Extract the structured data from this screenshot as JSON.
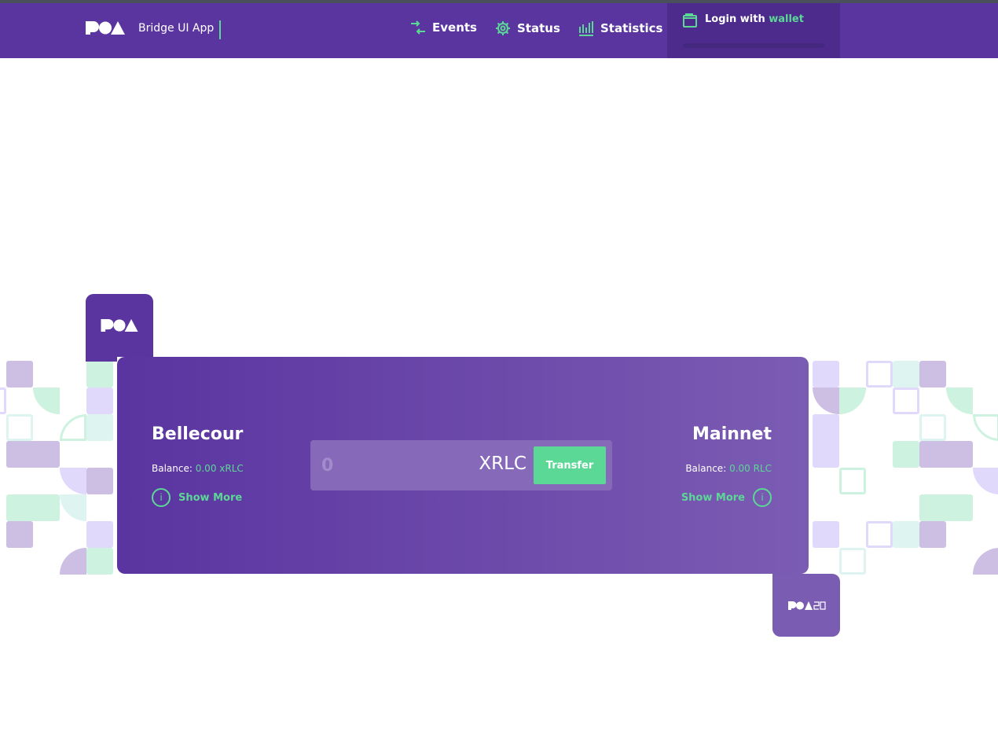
{
  "header": {
    "app_name": "Bridge UI App",
    "nav": [
      {
        "label": "Events",
        "icon": "arrows-exchange-icon"
      },
      {
        "label": "Status",
        "icon": "gear-icon"
      },
      {
        "label": "Statistics",
        "icon": "bar-chart-icon"
      }
    ],
    "login": {
      "prefix": "Login with",
      "highlight": "wallet",
      "icon": "wallet-icon"
    }
  },
  "bridge": {
    "home": {
      "name": "Bellecour",
      "balance_label": "Balance:",
      "balance": "0.00 xRLC",
      "show_more": "Show More"
    },
    "foreign": {
      "name": "Mainnet",
      "balance_label": "Balance:",
      "balance": "0.00 RLC",
      "show_more": "Show More"
    },
    "amount_placeholder": "0",
    "token": "XRLC",
    "transfer_label": "Transfer"
  },
  "colors": {
    "brand": "#5a35a0",
    "accent": "#5cd896"
  }
}
